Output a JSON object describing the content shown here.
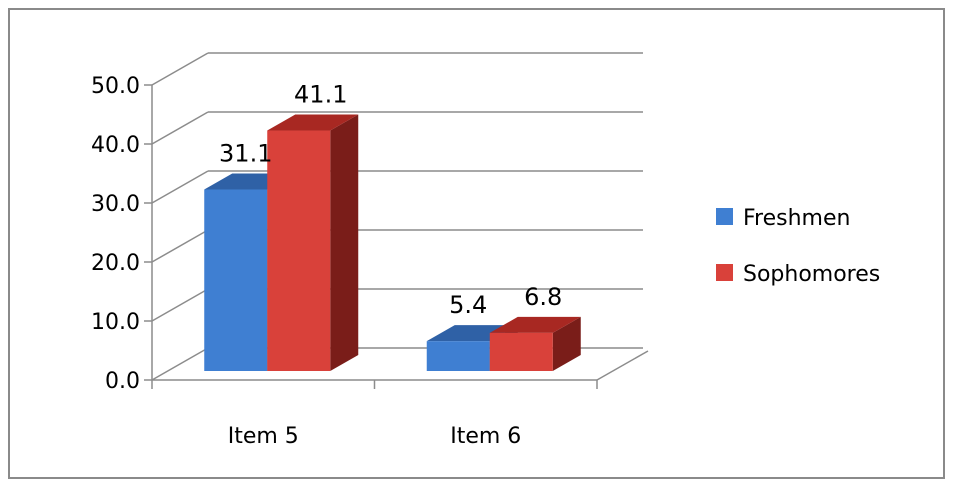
{
  "chart_data": {
    "type": "bar",
    "subtype": "3d-clustered-column",
    "categories": [
      "Item 5",
      "Item 6"
    ],
    "series": [
      {
        "name": "Freshmen",
        "values": [
          31.1,
          5.4
        ]
      },
      {
        "name": "Sophomores",
        "values": [
          41.1,
          6.8
        ]
      }
    ],
    "data_labels": [
      [
        "31.1",
        "5.4"
      ],
      [
        "41.1",
        "6.8"
      ]
    ],
    "ytick_labels": [
      "0.0",
      "10.0",
      "20.0",
      "30.0",
      "40.0",
      "50.0"
    ],
    "ylim": [
      0,
      50
    ],
    "grid": true,
    "legend_position": "right",
    "colors": {
      "Freshmen": {
        "front": "#3f7fd2",
        "top": "#2f61a6",
        "side": "#22467a"
      },
      "Sophomores": {
        "front": "#d9413a",
        "top": "#a82822",
        "side": "#7a1d19"
      },
      "grid": "#8c8c8c",
      "frame": "#8a8a8a"
    },
    "title": "",
    "xlabel": "",
    "ylabel": ""
  }
}
